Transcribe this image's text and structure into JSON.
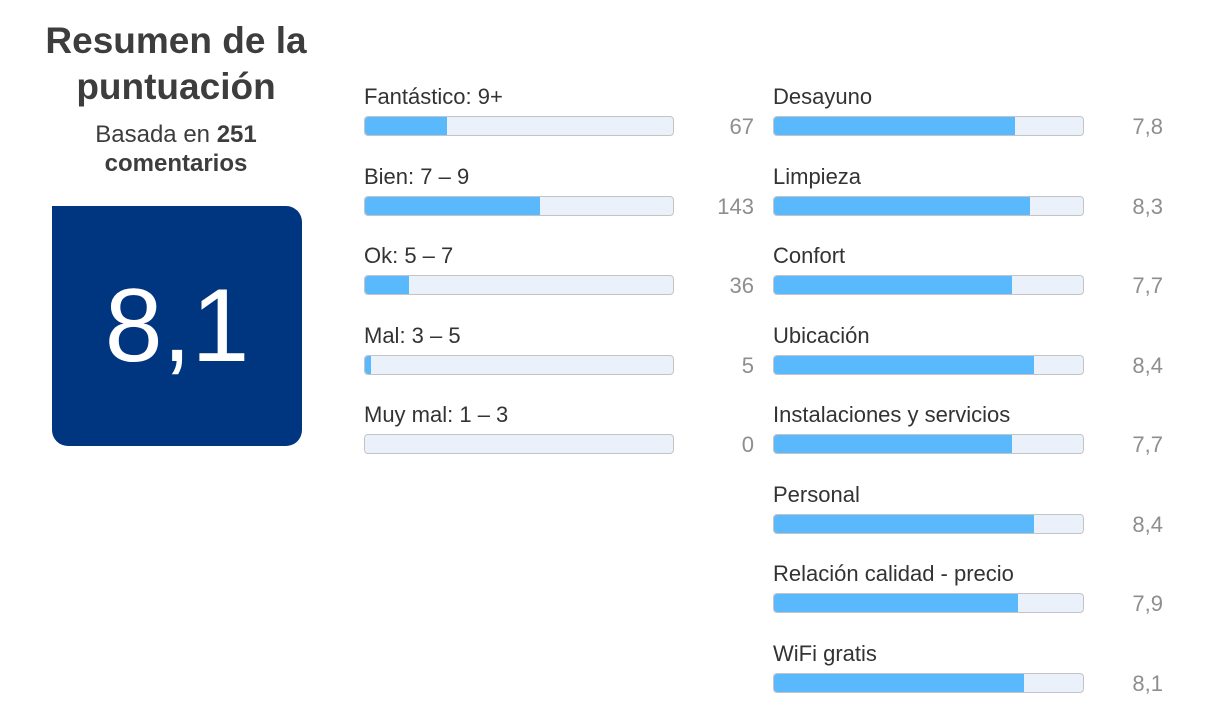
{
  "summary": {
    "title_line1": "Resumen de la",
    "title_line2": "puntuación",
    "based_prefix": "Basada en",
    "based_count": "251",
    "based_suffix": "comentarios",
    "score": "8,1",
    "score_bg_color": "#003580"
  },
  "colors": {
    "bar_fill": "#5ab8fd",
    "bar_track": "#ebf1fa",
    "value_text": "#8e8e8e"
  },
  "distribution": [
    {
      "label": "Fantástico: 9+",
      "count": "67",
      "count_num": 67
    },
    {
      "label": "Bien: 7 – 9",
      "count": "143",
      "count_num": 143
    },
    {
      "label": "Ok: 5 – 7",
      "count": "36",
      "count_num": 36
    },
    {
      "label": "Mal: 3 – 5",
      "count": "5",
      "count_num": 5
    },
    {
      "label": "Muy mal: 1 – 3",
      "count": "0",
      "count_num": 0
    }
  ],
  "distribution_max": 251,
  "categories": [
    {
      "label": "Desayuno",
      "score": "7,8",
      "score_num": 7.8
    },
    {
      "label": "Limpieza",
      "score": "8,3",
      "score_num": 8.3
    },
    {
      "label": "Confort",
      "score": "7,7",
      "score_num": 7.7
    },
    {
      "label": "Ubicación",
      "score": "8,4",
      "score_num": 8.4
    },
    {
      "label": "Instalaciones y servicios",
      "score": "7,7",
      "score_num": 7.7
    },
    {
      "label": "Personal",
      "score": "8,4",
      "score_num": 8.4
    },
    {
      "label": "Relación calidad - precio",
      "score": "7,9",
      "score_num": 7.9
    },
    {
      "label": "WiFi gratis",
      "score": "8,1",
      "score_num": 8.1
    }
  ],
  "category_max": 10
}
